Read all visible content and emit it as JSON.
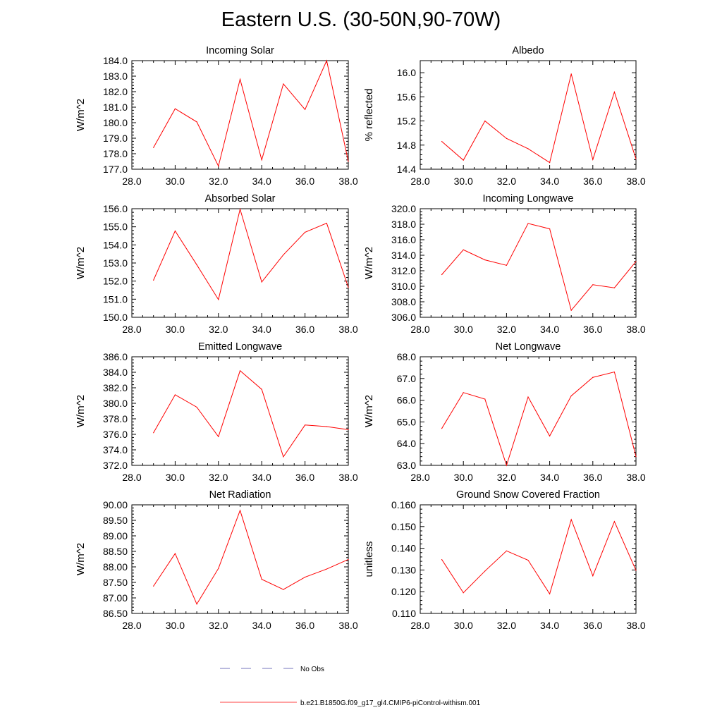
{
  "title": "Eastern U.S. (30-50N,90-70W)",
  "colors": {
    "series": "#ff0000",
    "obs": "#4a4aa8",
    "axis": "#000000"
  },
  "legend": {
    "entries": [
      {
        "label": "No Obs",
        "style": "dashed",
        "color": "#4a4aa8"
      },
      {
        "label": "b.e21.B1850G.f09_g17_gl4.CMIP6-piControl-withism.001",
        "style": "solid",
        "color": "#ff0000"
      }
    ]
  },
  "chart_data": [
    {
      "type": "line",
      "title": "Incoming Solar",
      "ylabel": "W/m^2",
      "xlim": [
        28,
        38
      ],
      "xticks": [
        28,
        30,
        32,
        34,
        36,
        38
      ],
      "xdecimals": 1,
      "ylim": [
        177,
        184
      ],
      "yticks": [
        177,
        178,
        179,
        180,
        181,
        182,
        183,
        184
      ],
      "ydecimals": 1,
      "x": [
        29,
        30,
        31,
        32,
        33,
        34,
        35,
        36,
        37,
        38
      ],
      "values": [
        178.4,
        180.9,
        180.05,
        177.2,
        182.8,
        177.6,
        182.5,
        180.85,
        184.0,
        177.5
      ]
    },
    {
      "type": "line",
      "title": "Albedo",
      "ylabel": "% reflected",
      "xlim": [
        28,
        38
      ],
      "xticks": [
        28,
        30,
        32,
        34,
        36,
        38
      ],
      "xdecimals": 1,
      "ylim": [
        14.4,
        16.2
      ],
      "yticks": [
        14.4,
        14.8,
        15.2,
        15.6,
        16.0
      ],
      "ydecimals": 1,
      "x": [
        29,
        30,
        31,
        32,
        33,
        34,
        35,
        36,
        37,
        38
      ],
      "values": [
        14.86,
        14.55,
        15.2,
        14.91,
        14.74,
        14.51,
        15.98,
        14.56,
        15.68,
        14.57
      ]
    },
    {
      "type": "line",
      "title": "Absorbed Solar",
      "ylabel": "W/m^2",
      "xlim": [
        28,
        38
      ],
      "xticks": [
        28,
        30,
        32,
        34,
        36,
        38
      ],
      "xdecimals": 1,
      "ylim": [
        150,
        156
      ],
      "yticks": [
        150,
        151,
        152,
        153,
        154,
        155,
        156
      ],
      "ydecimals": 1,
      "x": [
        29,
        30,
        31,
        32,
        33,
        34,
        35,
        36,
        37,
        38
      ],
      "values": [
        152.05,
        154.77,
        152.9,
        150.98,
        155.97,
        151.95,
        153.45,
        154.7,
        155.2,
        151.65
      ]
    },
    {
      "type": "line",
      "title": "Incoming Longwave",
      "ylabel": "W/m^2",
      "xlim": [
        28,
        38
      ],
      "xticks": [
        28,
        30,
        32,
        34,
        36,
        38
      ],
      "xdecimals": 1,
      "ylim": [
        306,
        320
      ],
      "yticks": [
        306,
        308,
        310,
        312,
        314,
        316,
        318,
        320
      ],
      "ydecimals": 1,
      "x": [
        29,
        30,
        31,
        32,
        33,
        34,
        35,
        36,
        37,
        38
      ],
      "values": [
        311.5,
        314.7,
        313.4,
        312.7,
        318.1,
        317.4,
        306.9,
        310.2,
        309.8,
        313.2
      ]
    },
    {
      "type": "line",
      "title": "Emitted Longwave",
      "ylabel": "W/m^2",
      "xlim": [
        28,
        38
      ],
      "xticks": [
        28,
        30,
        32,
        34,
        36,
        38
      ],
      "xdecimals": 1,
      "ylim": [
        372,
        386
      ],
      "yticks": [
        372,
        374,
        376,
        378,
        380,
        382,
        384,
        386
      ],
      "ydecimals": 1,
      "x": [
        29,
        30,
        31,
        32,
        33,
        34,
        35,
        36,
        37,
        38
      ],
      "values": [
        376.2,
        381.1,
        379.5,
        375.7,
        384.2,
        381.8,
        373.1,
        377.2,
        377.0,
        376.6
      ]
    },
    {
      "type": "line",
      "title": "Net Longwave",
      "ylabel": "W/m^2",
      "xlim": [
        28,
        38
      ],
      "xticks": [
        28,
        30,
        32,
        34,
        36,
        38
      ],
      "xdecimals": 1,
      "ylim": [
        63,
        68
      ],
      "yticks": [
        63,
        64,
        65,
        66,
        67,
        68
      ],
      "ydecimals": 1,
      "x": [
        29,
        30,
        31,
        32,
        33,
        34,
        35,
        36,
        37,
        38
      ],
      "values": [
        64.7,
        66.35,
        66.05,
        63.0,
        66.15,
        64.35,
        66.2,
        67.05,
        67.3,
        63.4
      ]
    },
    {
      "type": "line",
      "title": "Net Radiation",
      "ylabel": "W/m^2",
      "xlim": [
        28,
        38
      ],
      "xticks": [
        28,
        30,
        32,
        34,
        36,
        38
      ],
      "xdecimals": 1,
      "ylim": [
        86.5,
        90.0
      ],
      "yticks": [
        86.5,
        87.0,
        87.5,
        88.0,
        88.5,
        89.0,
        89.5,
        90.0
      ],
      "ydecimals": 2,
      "x": [
        29,
        30,
        31,
        32,
        33,
        34,
        35,
        36,
        37,
        38
      ],
      "values": [
        87.38,
        88.43,
        86.8,
        87.95,
        89.82,
        87.6,
        87.27,
        87.67,
        87.93,
        88.24
      ]
    },
    {
      "type": "line",
      "title": "Ground Snow Covered Fraction",
      "ylabel": "unitless",
      "xlim": [
        28,
        38
      ],
      "xticks": [
        28,
        30,
        32,
        34,
        36,
        38
      ],
      "xdecimals": 1,
      "ylim": [
        0.11,
        0.16
      ],
      "yticks": [
        0.11,
        0.12,
        0.13,
        0.14,
        0.15,
        0.16
      ],
      "ydecimals": 3,
      "x": [
        29,
        30,
        31,
        32,
        33,
        34,
        35,
        36,
        37,
        38
      ],
      "values": [
        0.1348,
        0.1195,
        0.1295,
        0.1388,
        0.1345,
        0.119,
        0.1532,
        0.1273,
        0.1523,
        0.1298
      ]
    }
  ]
}
